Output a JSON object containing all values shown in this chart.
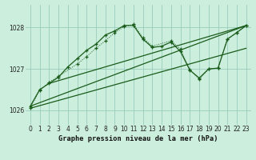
{
  "title": "Graphe pression niveau de la mer (hPa)",
  "bg_color": "#cceedd",
  "plot_bg": "#cceedd",
  "grid_color": "#99ccbb",
  "line_color": "#1a5c1a",
  "ylim": [
    1025.65,
    1028.55
  ],
  "xlim": [
    -0.5,
    23.5
  ],
  "yticks": [
    1026,
    1027,
    1028
  ],
  "xticks": [
    0,
    1,
    2,
    3,
    4,
    5,
    6,
    7,
    8,
    9,
    10,
    11,
    12,
    13,
    14,
    15,
    16,
    17,
    18,
    19,
    20,
    21,
    22,
    23
  ],
  "series1_x": [
    0,
    1,
    2,
    3,
    4,
    5,
    6,
    7,
    8,
    9,
    10,
    11,
    12,
    13,
    14,
    15,
    16,
    17,
    18,
    19,
    20,
    21,
    22,
    23
  ],
  "series1_y": [
    1026.1,
    1026.5,
    1026.65,
    1026.8,
    1027.05,
    1027.25,
    1027.45,
    1027.6,
    1027.82,
    1027.92,
    1028.05,
    1028.05,
    1027.72,
    1027.52,
    1027.55,
    1027.65,
    1027.42,
    1026.97,
    1026.78,
    1027.0,
    1027.02,
    1027.72,
    1027.88,
    1028.05
  ],
  "series2_x": [
    0,
    1,
    2,
    3,
    5,
    6,
    7,
    8,
    9,
    10,
    11,
    12,
    13,
    15,
    16,
    17,
    18,
    19,
    20,
    21,
    22,
    23
  ],
  "series2_y": [
    1026.06,
    1026.48,
    1026.68,
    1026.82,
    1027.12,
    1027.3,
    1027.5,
    1027.68,
    1027.88,
    1028.02,
    1028.08,
    1027.75,
    1027.55,
    1027.68,
    1027.48,
    1026.98,
    1026.75,
    1027.0,
    1027.02,
    1027.72,
    1027.88,
    1028.05
  ],
  "trend1_x": [
    0,
    23
  ],
  "trend1_y": [
    1026.1,
    1028.05
  ],
  "trend2_x": [
    2,
    23
  ],
  "trend2_y": [
    1026.65,
    1028.05
  ],
  "trend3_x": [
    0,
    23
  ],
  "trend3_y": [
    1026.05,
    1027.5
  ]
}
